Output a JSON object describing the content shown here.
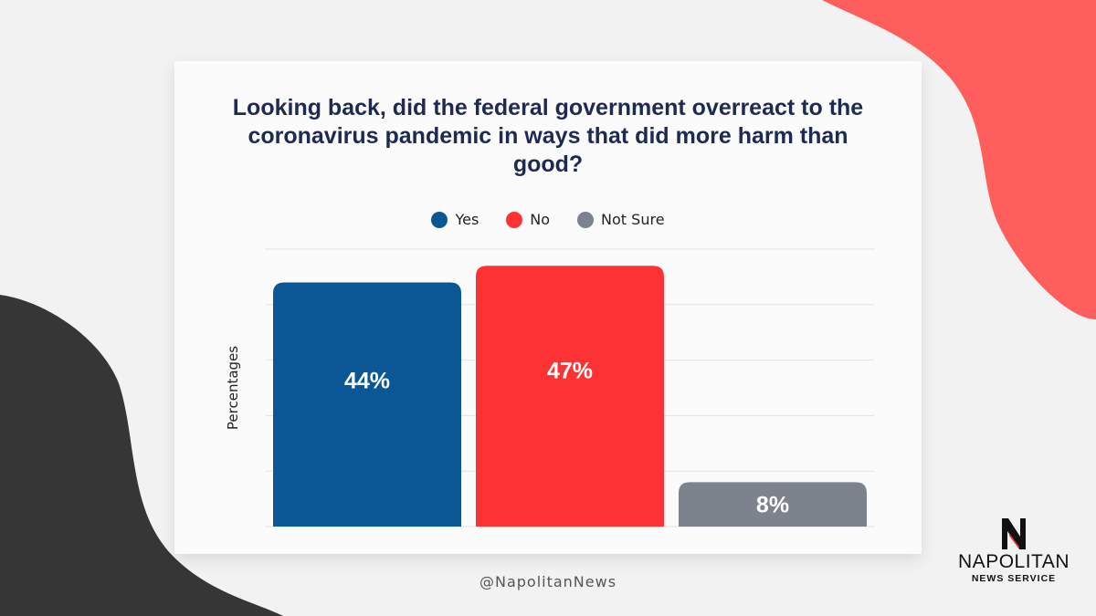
{
  "chart_data": {
    "type": "bar",
    "title": "Looking back, did the federal government overreact to the coronavirus pandemic in ways that did more harm than good?",
    "categories": [
      "Yes",
      "No",
      "Not Sure"
    ],
    "values": [
      44,
      47,
      8
    ],
    "value_labels": [
      "44%",
      "47%",
      "8%"
    ],
    "ylabel": "Percentages",
    "xlabel": "",
    "ylim": [
      0,
      50
    ],
    "grid": true,
    "legend_placement": "top-center",
    "colors": [
      "#0b5796",
      "#fd3234",
      "#7d838d"
    ]
  },
  "legend": [
    {
      "label": "Yes",
      "color": "#0b5796"
    },
    {
      "label": "No",
      "color": "#fd3234"
    },
    {
      "label": "Not Sure",
      "color": "#7d838d"
    }
  ],
  "footer": {
    "handle": "@NapolitanNews"
  },
  "logo": {
    "name": "NAPOLITAN",
    "subtitle": "NEWS SERVICE",
    "icon": "n-logo-icon"
  },
  "theme": {
    "accent_red": "#fe5f5d",
    "dark_shape": "#363636",
    "title_color": "#1e2a52"
  }
}
